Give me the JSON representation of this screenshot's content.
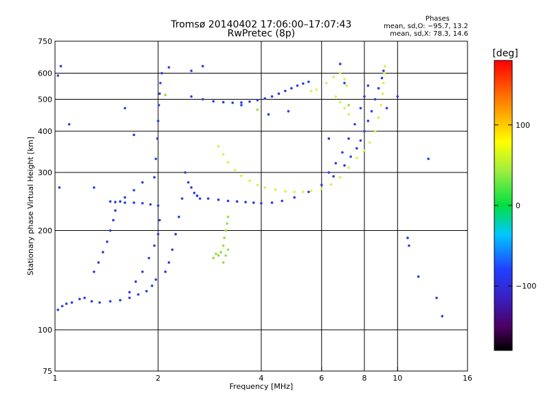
{
  "header": {
    "title": "Tromsø 20140402 17:06:00–17:07:43",
    "subtitle": "RwPretec (8p)",
    "stats_title": "Phases",
    "stats_o": "mean, sd,O: −95.7, 13.2",
    "stats_x": "mean, sd,X:  78.3, 14.6"
  },
  "colors": {
    "blue": "#2b3de0",
    "yellow": "#d8f046",
    "green": "#8fe23a",
    "grid": "#000000"
  },
  "chart_data": {
    "type": "scatter",
    "title": "Tromsø 20140402 17:06:00–17:07:43",
    "xlabel": "Frequency [MHz]",
    "ylabel": "Stationary phase Virtual Height [km]",
    "x_scale": "log",
    "y_scale": "log",
    "xlim": [
      1,
      16
    ],
    "ylim": [
      75,
      750
    ],
    "x_ticks": [
      1,
      2,
      4,
      6,
      8,
      10,
      16
    ],
    "x_tick_labels": [
      "1",
      "2",
      "4",
      "6",
      "8",
      "10",
      "16"
    ],
    "y_ticks": [
      75,
      100,
      200,
      300,
      400,
      500,
      600,
      750
    ],
    "y_tick_labels": [
      "75",
      "100",
      "200",
      "300",
      "400",
      "500",
      "600",
      "750"
    ],
    "x_gridlines": [
      2,
      4,
      6,
      8,
      10
    ],
    "y_gridlines": [
      100,
      200,
      300,
      400,
      500,
      600
    ],
    "colorbar": {
      "label": "[deg]",
      "ticks": [
        100,
        0,
        -100
      ],
      "tick_labels": [
        "100",
        "0",
        "−100"
      ],
      "range": [
        -180,
        180
      ]
    },
    "series": [
      {
        "color": "blue",
        "points": [
          [
            1.02,
            115
          ],
          [
            1.05,
            118
          ],
          [
            1.08,
            120
          ],
          [
            1.12,
            121
          ],
          [
            1.18,
            124
          ],
          [
            1.22,
            125
          ],
          [
            1.28,
            122
          ],
          [
            1.35,
            121
          ],
          [
            1.45,
            122
          ],
          [
            1.55,
            123
          ],
          [
            1.65,
            125
          ],
          [
            1.75,
            128
          ],
          [
            1.85,
            131
          ],
          [
            1.92,
            136
          ],
          [
            1.97,
            142
          ],
          [
            1.3,
            150
          ],
          [
            1.34,
            160
          ],
          [
            1.38,
            172
          ],
          [
            1.42,
            185
          ],
          [
            1.45,
            200
          ],
          [
            1.48,
            215
          ],
          [
            1.5,
            230
          ],
          [
            1.55,
            245
          ],
          [
            1.6,
            252
          ],
          [
            1.7,
            265
          ],
          [
            1.8,
            280
          ],
          [
            1.65,
            130
          ],
          [
            1.72,
            140
          ],
          [
            1.8,
            150
          ],
          [
            1.88,
            165
          ],
          [
            1.95,
            180
          ],
          [
            2.0,
            195
          ],
          [
            2.02,
            215
          ],
          [
            1.95,
            290
          ],
          [
            1.97,
            330
          ],
          [
            1.99,
            380
          ],
          [
            2.0,
            430
          ],
          [
            2.01,
            480
          ],
          [
            2.02,
            520
          ],
          [
            2.03,
            560
          ],
          [
            2.05,
            600
          ],
          [
            2.1,
            150
          ],
          [
            2.15,
            160
          ],
          [
            2.2,
            175
          ],
          [
            2.25,
            195
          ],
          [
            2.3,
            220
          ],
          [
            2.35,
            250
          ],
          [
            2.4,
            300
          ],
          [
            2.45,
            280
          ],
          [
            2.5,
            270
          ],
          [
            2.55,
            260
          ],
          [
            2.6,
            255
          ],
          [
            2.65,
            250
          ],
          [
            1.45,
            245
          ],
          [
            1.5,
            244
          ],
          [
            1.6,
            243
          ],
          [
            1.7,
            243
          ],
          [
            1.8,
            242
          ],
          [
            1.9,
            240
          ],
          [
            2.0,
            238
          ],
          [
            2.6,
            255
          ],
          [
            2.8,
            250
          ],
          [
            3.0,
            248
          ],
          [
            3.2,
            246
          ],
          [
            3.4,
            245
          ],
          [
            3.6,
            244
          ],
          [
            3.8,
            243
          ],
          [
            4.0,
            242
          ],
          [
            4.3,
            243
          ],
          [
            4.6,
            246
          ],
          [
            5.0,
            252
          ],
          [
            5.5,
            262
          ],
          [
            6.0,
            275
          ],
          [
            6.5,
            292
          ],
          [
            7.0,
            315
          ],
          [
            7.3,
            335
          ],
          [
            7.6,
            355
          ],
          [
            7.8,
            375
          ],
          [
            8.0,
            400
          ],
          [
            8.2,
            430
          ],
          [
            8.4,
            460
          ],
          [
            8.6,
            500
          ],
          [
            8.8,
            540
          ],
          [
            9.0,
            580
          ],
          [
            9.1,
            610
          ],
          [
            2.5,
            510
          ],
          [
            2.7,
            500
          ],
          [
            2.9,
            493
          ],
          [
            3.1,
            490
          ],
          [
            3.3,
            488
          ],
          [
            3.5,
            489
          ],
          [
            3.7,
            492
          ],
          [
            3.9,
            497
          ],
          [
            4.1,
            503
          ],
          [
            4.3,
            510
          ],
          [
            4.5,
            520
          ],
          [
            4.7,
            530
          ],
          [
            4.9,
            540
          ],
          [
            5.1,
            550
          ],
          [
            5.3,
            558
          ],
          [
            5.5,
            565
          ],
          [
            6.3,
            300
          ],
          [
            6.6,
            320
          ],
          [
            6.9,
            345
          ],
          [
            7.2,
            380
          ],
          [
            7.5,
            420
          ],
          [
            7.8,
            470
          ],
          [
            8.0,
            510
          ],
          [
            8.2,
            550
          ],
          [
            1.03,
            270
          ],
          [
            1.02,
            590
          ],
          [
            1.04,
            630
          ],
          [
            1.1,
            420
          ],
          [
            1.3,
            270
          ],
          [
            1.6,
            470
          ],
          [
            1.7,
            390
          ],
          [
            2.15,
            625
          ],
          [
            2.5,
            610
          ],
          [
            2.7,
            630
          ],
          [
            3.5,
            480
          ],
          [
            4.2,
            450
          ],
          [
            4.8,
            460
          ],
          [
            6.3,
            380
          ],
          [
            6.8,
            640
          ],
          [
            7.0,
            560
          ],
          [
            9.3,
            470
          ],
          [
            10.0,
            510
          ],
          [
            10.7,
            190
          ],
          [
            10.8,
            180
          ],
          [
            11.5,
            145
          ],
          [
            12.3,
            330
          ],
          [
            13.0,
            125
          ],
          [
            13.5,
            110
          ]
        ]
      },
      {
        "color": "yellow",
        "points": [
          [
            3.0,
            360
          ],
          [
            3.1,
            340
          ],
          [
            3.2,
            322
          ],
          [
            3.35,
            305
          ],
          [
            3.5,
            293
          ],
          [
            3.7,
            283
          ],
          [
            3.9,
            275
          ],
          [
            4.1,
            270
          ],
          [
            4.4,
            266
          ],
          [
            4.7,
            263
          ],
          [
            5.0,
            262
          ],
          [
            5.3,
            262
          ],
          [
            5.6,
            264
          ],
          [
            6.0,
            268
          ],
          [
            6.4,
            276
          ],
          [
            6.8,
            290
          ],
          [
            7.2,
            310
          ],
          [
            7.6,
            332
          ],
          [
            8.0,
            350
          ],
          [
            8.3,
            370
          ],
          [
            8.6,
            400
          ],
          [
            8.8,
            440
          ],
          [
            8.95,
            480
          ],
          [
            9.05,
            520
          ],
          [
            9.1,
            560
          ],
          [
            9.15,
            600
          ],
          [
            9.18,
            630
          ],
          [
            5.6,
            530
          ],
          [
            5.8,
            535
          ],
          [
            6.2,
            560
          ],
          [
            6.5,
            585
          ],
          [
            6.8,
            600
          ],
          [
            7.0,
            575
          ],
          [
            7.1,
            550
          ],
          [
            6.6,
            510
          ],
          [
            6.8,
            490
          ],
          [
            7.0,
            470
          ],
          [
            7.2,
            450
          ]
        ]
      },
      {
        "color": "green",
        "points": [
          [
            2.9,
            165
          ],
          [
            2.95,
            170
          ],
          [
            3.0,
            168
          ],
          [
            3.05,
            172
          ],
          [
            3.1,
            180
          ],
          [
            3.12,
            190
          ],
          [
            3.15,
            200
          ],
          [
            3.18,
            210
          ],
          [
            3.2,
            220
          ],
          [
            3.1,
            160
          ],
          [
            3.15,
            168
          ],
          [
            3.2,
            175
          ],
          [
            2.1,
            515
          ],
          [
            3.9,
            465
          ],
          [
            7.2,
            480
          ]
        ]
      }
    ]
  }
}
